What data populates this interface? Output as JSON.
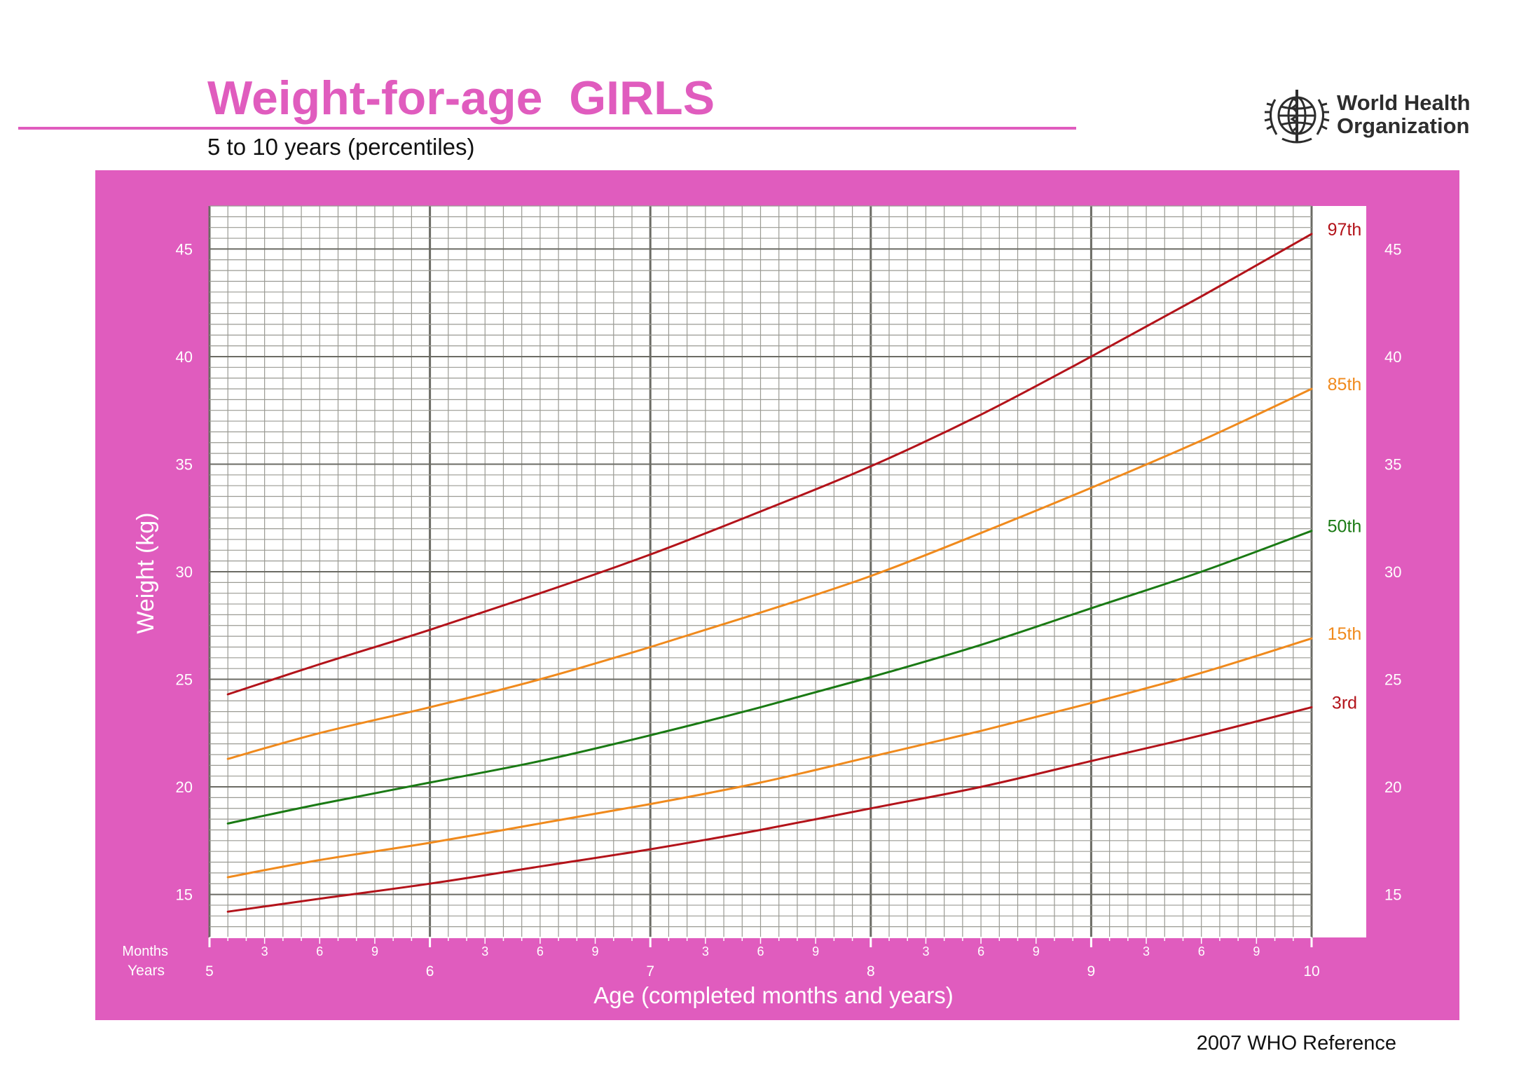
{
  "header": {
    "title": "Weight-for-age  GIRLS",
    "subtitle": "5 to 10 years (percentiles)",
    "org_name_line1": "World Health",
    "org_name_line2": "Organization",
    "logo_icon": "who-emblem-icon"
  },
  "footer": {
    "reference": "2007 WHO Reference"
  },
  "colors": {
    "brand_pink": "#e05cbe",
    "grid_minor": "#9a9a93",
    "grid_major": "#6b6b64",
    "p97": "#b3131a",
    "p85": "#f08a1d",
    "p50": "#1a7a14",
    "p15": "#f08a1d",
    "p3": "#b3131a"
  },
  "chart_data": {
    "type": "line",
    "x": [
      5.0,
      5.5,
      6.0,
      6.5,
      7.0,
      7.5,
      8.0,
      8.5,
      9.0,
      9.5,
      10.0
    ],
    "xlim": [
      5,
      10
    ],
    "ylim": [
      13,
      47
    ],
    "xlabel": "Age (completed months and years)",
    "ylabel": "Weight (kg)",
    "row_labels": {
      "months": "Months",
      "years": "Years"
    },
    "year_ticks": [
      "5",
      "6",
      "7",
      "8",
      "9",
      "10"
    ],
    "month_ticks": [
      "3",
      "6",
      "9"
    ],
    "y_ticks": [
      15,
      20,
      25,
      30,
      35,
      40,
      45
    ],
    "grid": true,
    "series": [
      {
        "name": "97th",
        "color": "#b3131a",
        "values": [
          24.3,
          25.7,
          27.3,
          29.0,
          30.8,
          32.8,
          34.9,
          37.3,
          40.0,
          42.8,
          45.7
        ]
      },
      {
        "name": "85th",
        "color": "#f08a1d",
        "values": [
          21.3,
          22.5,
          23.7,
          25.0,
          26.5,
          28.1,
          29.8,
          31.8,
          33.9,
          36.1,
          38.5
        ]
      },
      {
        "name": "50th",
        "color": "#1a7a14",
        "values": [
          18.3,
          19.2,
          20.2,
          21.2,
          22.4,
          23.7,
          25.1,
          26.6,
          28.3,
          30.0,
          31.9
        ]
      },
      {
        "name": "15th",
        "color": "#f08a1d",
        "values": [
          15.8,
          16.6,
          17.4,
          18.3,
          19.2,
          20.2,
          21.4,
          22.6,
          23.9,
          25.3,
          26.9
        ]
      },
      {
        "name": "3rd",
        "color": "#b3131a",
        "values": [
          14.2,
          14.8,
          15.5,
          16.3,
          17.1,
          18.0,
          19.0,
          20.0,
          21.2,
          22.4,
          23.7
        ]
      }
    ]
  }
}
